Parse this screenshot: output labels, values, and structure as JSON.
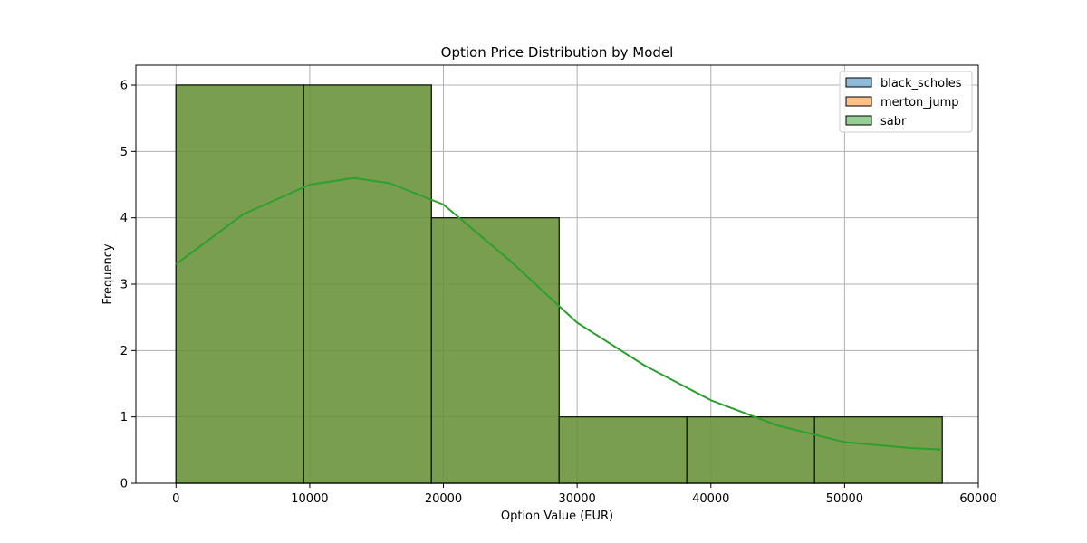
{
  "chart_data": {
    "type": "histogram",
    "title": "Option Price Distribution by Model",
    "xlabel": "Option Value (EUR)",
    "ylabel": "Frequency",
    "xlim": [
      -3000,
      60000
    ],
    "ylim": [
      0,
      6.3
    ],
    "xticks": [
      0,
      10000,
      20000,
      30000,
      40000,
      50000,
      60000
    ],
    "yticks": [
      0,
      1,
      2,
      3,
      4,
      5,
      6
    ],
    "grid": true,
    "legend_position": "top-right",
    "bin_edges": [
      0,
      9550,
      19100,
      28650,
      38200,
      47750,
      57300
    ],
    "series": [
      {
        "name": "black_scholes",
        "color": "#1f77b4",
        "counts": [
          6,
          6,
          4,
          1,
          1,
          1
        ]
      },
      {
        "name": "merton_jump",
        "color": "#ff7f0e",
        "counts": [
          6,
          6,
          4,
          1,
          1,
          1
        ]
      },
      {
        "name": "sabr",
        "color": "#2ca02c",
        "counts": [
          6,
          6,
          4,
          1,
          1,
          1
        ]
      }
    ],
    "kde": {
      "color": "#2ca02c",
      "x": [
        0,
        5000,
        10000,
        13300,
        16000,
        20000,
        25000,
        30000,
        35000,
        40000,
        45000,
        50000,
        55000,
        57300
      ],
      "y": [
        3.3,
        4.05,
        4.5,
        4.6,
        4.52,
        4.2,
        3.35,
        2.42,
        1.78,
        1.25,
        0.87,
        0.62,
        0.53,
        0.51
      ]
    }
  }
}
